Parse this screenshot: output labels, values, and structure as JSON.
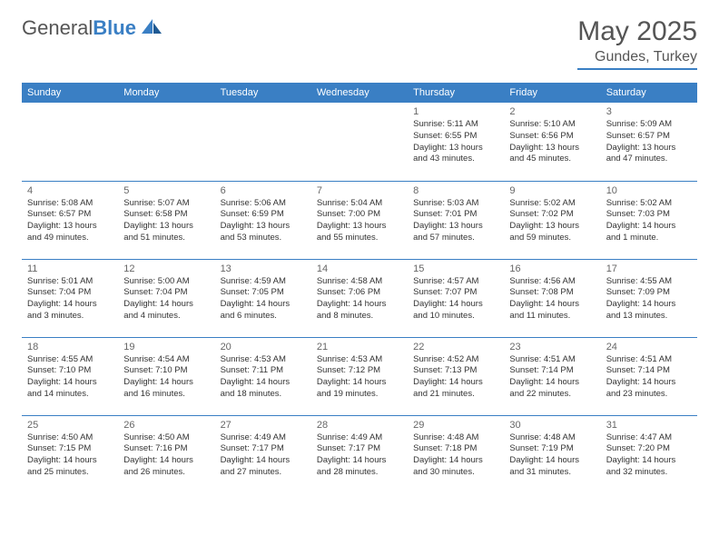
{
  "brand": {
    "name_gray": "General",
    "name_blue": "Blue"
  },
  "title": "May 2025",
  "location": "Gundes, Turkey",
  "colors": {
    "accent": "#3a7fc4",
    "text": "#333333",
    "muted": "#666666",
    "header_text": "#555555",
    "bg": "#ffffff"
  },
  "typography": {
    "title_fontsize": 30,
    "location_fontsize": 16,
    "dow_fontsize": 11,
    "daynum_fontsize": 11,
    "body_fontsize": 9.5
  },
  "layout": {
    "cols": 7,
    "rows": 5,
    "col_width_pct": 14.28
  },
  "days_of_week": [
    "Sunday",
    "Monday",
    "Tuesday",
    "Wednesday",
    "Thursday",
    "Friday",
    "Saturday"
  ],
  "cells": [
    {
      "day": "",
      "sunrise": "",
      "sunset": "",
      "daylight": ""
    },
    {
      "day": "",
      "sunrise": "",
      "sunset": "",
      "daylight": ""
    },
    {
      "day": "",
      "sunrise": "",
      "sunset": "",
      "daylight": ""
    },
    {
      "day": "",
      "sunrise": "",
      "sunset": "",
      "daylight": ""
    },
    {
      "day": "1",
      "sunrise": "Sunrise: 5:11 AM",
      "sunset": "Sunset: 6:55 PM",
      "daylight": "Daylight: 13 hours and 43 minutes."
    },
    {
      "day": "2",
      "sunrise": "Sunrise: 5:10 AM",
      "sunset": "Sunset: 6:56 PM",
      "daylight": "Daylight: 13 hours and 45 minutes."
    },
    {
      "day": "3",
      "sunrise": "Sunrise: 5:09 AM",
      "sunset": "Sunset: 6:57 PM",
      "daylight": "Daylight: 13 hours and 47 minutes."
    },
    {
      "day": "4",
      "sunrise": "Sunrise: 5:08 AM",
      "sunset": "Sunset: 6:57 PM",
      "daylight": "Daylight: 13 hours and 49 minutes."
    },
    {
      "day": "5",
      "sunrise": "Sunrise: 5:07 AM",
      "sunset": "Sunset: 6:58 PM",
      "daylight": "Daylight: 13 hours and 51 minutes."
    },
    {
      "day": "6",
      "sunrise": "Sunrise: 5:06 AM",
      "sunset": "Sunset: 6:59 PM",
      "daylight": "Daylight: 13 hours and 53 minutes."
    },
    {
      "day": "7",
      "sunrise": "Sunrise: 5:04 AM",
      "sunset": "Sunset: 7:00 PM",
      "daylight": "Daylight: 13 hours and 55 minutes."
    },
    {
      "day": "8",
      "sunrise": "Sunrise: 5:03 AM",
      "sunset": "Sunset: 7:01 PM",
      "daylight": "Daylight: 13 hours and 57 minutes."
    },
    {
      "day": "9",
      "sunrise": "Sunrise: 5:02 AM",
      "sunset": "Sunset: 7:02 PM",
      "daylight": "Daylight: 13 hours and 59 minutes."
    },
    {
      "day": "10",
      "sunrise": "Sunrise: 5:02 AM",
      "sunset": "Sunset: 7:03 PM",
      "daylight": "Daylight: 14 hours and 1 minute."
    },
    {
      "day": "11",
      "sunrise": "Sunrise: 5:01 AM",
      "sunset": "Sunset: 7:04 PM",
      "daylight": "Daylight: 14 hours and 3 minutes."
    },
    {
      "day": "12",
      "sunrise": "Sunrise: 5:00 AM",
      "sunset": "Sunset: 7:04 PM",
      "daylight": "Daylight: 14 hours and 4 minutes."
    },
    {
      "day": "13",
      "sunrise": "Sunrise: 4:59 AM",
      "sunset": "Sunset: 7:05 PM",
      "daylight": "Daylight: 14 hours and 6 minutes."
    },
    {
      "day": "14",
      "sunrise": "Sunrise: 4:58 AM",
      "sunset": "Sunset: 7:06 PM",
      "daylight": "Daylight: 14 hours and 8 minutes."
    },
    {
      "day": "15",
      "sunrise": "Sunrise: 4:57 AM",
      "sunset": "Sunset: 7:07 PM",
      "daylight": "Daylight: 14 hours and 10 minutes."
    },
    {
      "day": "16",
      "sunrise": "Sunrise: 4:56 AM",
      "sunset": "Sunset: 7:08 PM",
      "daylight": "Daylight: 14 hours and 11 minutes."
    },
    {
      "day": "17",
      "sunrise": "Sunrise: 4:55 AM",
      "sunset": "Sunset: 7:09 PM",
      "daylight": "Daylight: 14 hours and 13 minutes."
    },
    {
      "day": "18",
      "sunrise": "Sunrise: 4:55 AM",
      "sunset": "Sunset: 7:10 PM",
      "daylight": "Daylight: 14 hours and 14 minutes."
    },
    {
      "day": "19",
      "sunrise": "Sunrise: 4:54 AM",
      "sunset": "Sunset: 7:10 PM",
      "daylight": "Daylight: 14 hours and 16 minutes."
    },
    {
      "day": "20",
      "sunrise": "Sunrise: 4:53 AM",
      "sunset": "Sunset: 7:11 PM",
      "daylight": "Daylight: 14 hours and 18 minutes."
    },
    {
      "day": "21",
      "sunrise": "Sunrise: 4:53 AM",
      "sunset": "Sunset: 7:12 PM",
      "daylight": "Daylight: 14 hours and 19 minutes."
    },
    {
      "day": "22",
      "sunrise": "Sunrise: 4:52 AM",
      "sunset": "Sunset: 7:13 PM",
      "daylight": "Daylight: 14 hours and 21 minutes."
    },
    {
      "day": "23",
      "sunrise": "Sunrise: 4:51 AM",
      "sunset": "Sunset: 7:14 PM",
      "daylight": "Daylight: 14 hours and 22 minutes."
    },
    {
      "day": "24",
      "sunrise": "Sunrise: 4:51 AM",
      "sunset": "Sunset: 7:14 PM",
      "daylight": "Daylight: 14 hours and 23 minutes."
    },
    {
      "day": "25",
      "sunrise": "Sunrise: 4:50 AM",
      "sunset": "Sunset: 7:15 PM",
      "daylight": "Daylight: 14 hours and 25 minutes."
    },
    {
      "day": "26",
      "sunrise": "Sunrise: 4:50 AM",
      "sunset": "Sunset: 7:16 PM",
      "daylight": "Daylight: 14 hours and 26 minutes."
    },
    {
      "day": "27",
      "sunrise": "Sunrise: 4:49 AM",
      "sunset": "Sunset: 7:17 PM",
      "daylight": "Daylight: 14 hours and 27 minutes."
    },
    {
      "day": "28",
      "sunrise": "Sunrise: 4:49 AM",
      "sunset": "Sunset: 7:17 PM",
      "daylight": "Daylight: 14 hours and 28 minutes."
    },
    {
      "day": "29",
      "sunrise": "Sunrise: 4:48 AM",
      "sunset": "Sunset: 7:18 PM",
      "daylight": "Daylight: 14 hours and 30 minutes."
    },
    {
      "day": "30",
      "sunrise": "Sunrise: 4:48 AM",
      "sunset": "Sunset: 7:19 PM",
      "daylight": "Daylight: 14 hours and 31 minutes."
    },
    {
      "day": "31",
      "sunrise": "Sunrise: 4:47 AM",
      "sunset": "Sunset: 7:20 PM",
      "daylight": "Daylight: 14 hours and 32 minutes."
    }
  ]
}
